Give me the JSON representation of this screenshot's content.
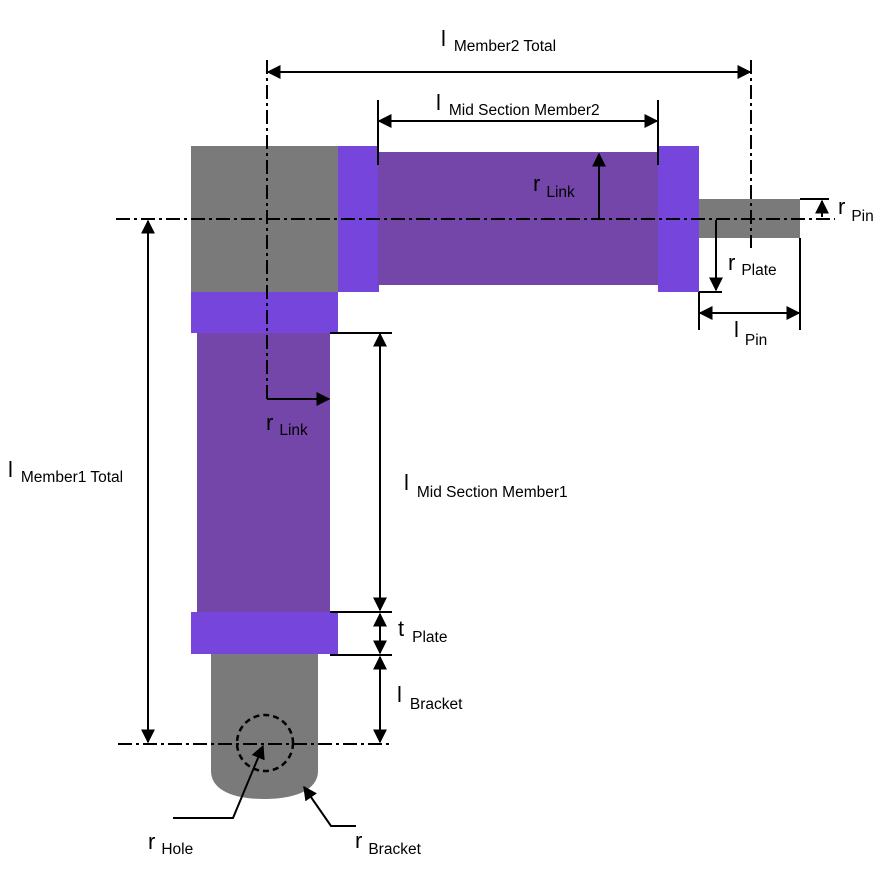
{
  "colors": {
    "steel": "#7a7a7a",
    "plate": "#7646dc",
    "link": "#7446a9",
    "line": "#000000",
    "background": "#ffffff"
  },
  "labels": {
    "member2_total": {
      "main": "l",
      "sub": "Member2 Total"
    },
    "mid_section_member2": {
      "main": "l",
      "sub": "Mid Section Member2"
    },
    "r_link_top": {
      "main": "r",
      "sub": "Link"
    },
    "r_pin": {
      "main": "r",
      "sub": "Pin"
    },
    "r_plate": {
      "main": "r",
      "sub": "Plate"
    },
    "l_pin": {
      "main": "l",
      "sub": "Pin"
    },
    "r_link_left": {
      "main": "r",
      "sub": "Link"
    },
    "member1_total": {
      "main": "l",
      "sub": "Member1 Total"
    },
    "mid_section_member1": {
      "main": "l",
      "sub": "Mid Section Member1"
    },
    "t_plate": {
      "main": "t",
      "sub": "Plate"
    },
    "l_bracket": {
      "main": "l",
      "sub": "Bracket"
    },
    "r_hole": {
      "main": "r",
      "sub": "Hole"
    },
    "r_bracket": {
      "main": "r",
      "sub": "Bracket"
    }
  }
}
